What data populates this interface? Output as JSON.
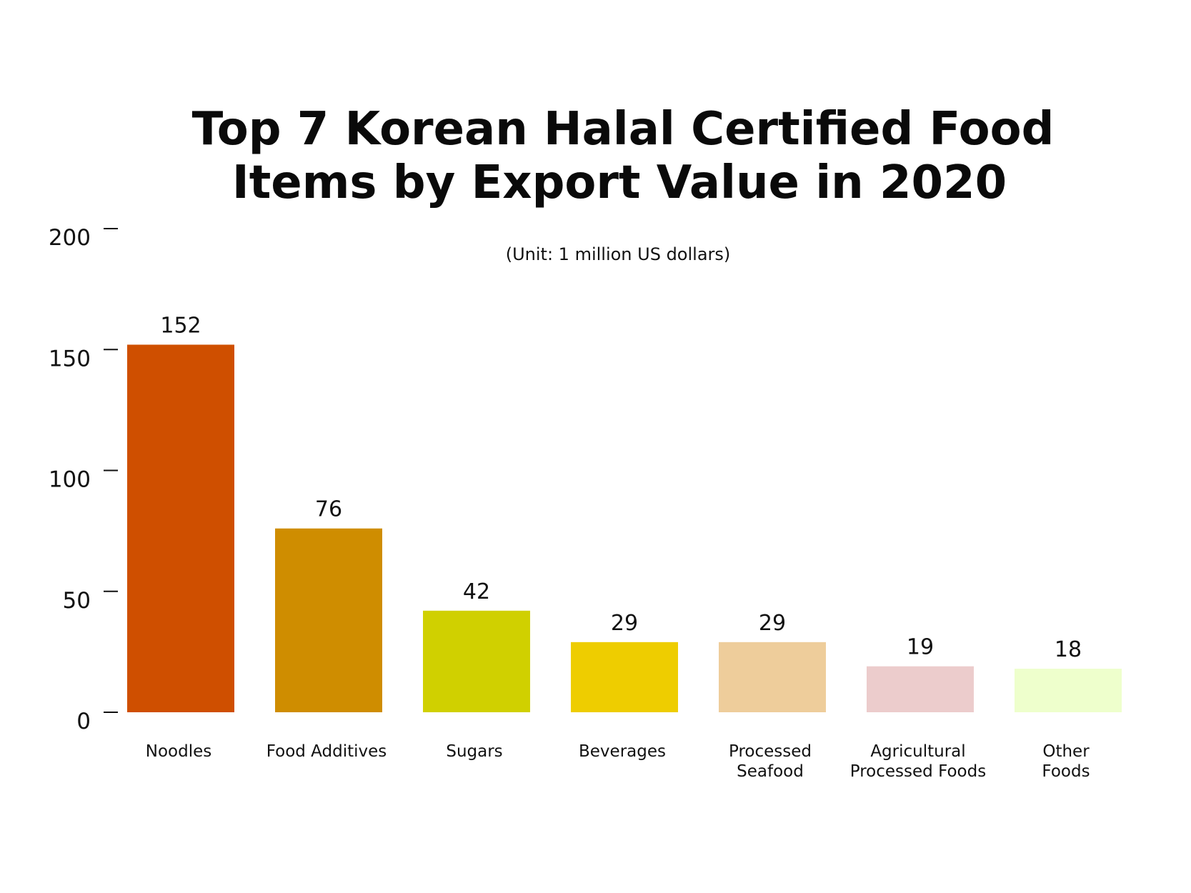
{
  "chart_data": {
    "type": "bar",
    "title": "Top 7 Korean Halal Certified Food Items by Export Value in 2020",
    "title_lines": [
      "Top 7 Korean Halal Certified Food",
      "Items by Export Value in 2020"
    ],
    "subtitle": "(Unit: 1 million US dollars)",
    "categories": [
      "Noodles",
      "Food Additives",
      "Sugars",
      "Beverages",
      "Processed Seafood",
      "Agricultural Processed Foods",
      "Other Foods"
    ],
    "category_lines": [
      [
        "Noodles"
      ],
      [
        "Food Additives"
      ],
      [
        "Sugars"
      ],
      [
        "Beverages"
      ],
      [
        "Processed",
        "Seafood"
      ],
      [
        "Agricultural",
        "Processed Foods"
      ],
      [
        "Other",
        "Foods"
      ]
    ],
    "values": [
      152,
      76,
      42,
      29,
      29,
      19,
      18
    ],
    "value_labels": [
      "152",
      "76",
      "42",
      "29",
      "29",
      "19",
      "18"
    ],
    "colors": [
      "#cf4f00",
      "#cf8d00",
      "#d0d000",
      "#eecd00",
      "#eecd9b",
      "#eccccc",
      "#eeffcc"
    ],
    "ylim": [
      0,
      200
    ],
    "y_ticks": [
      0,
      50,
      100,
      150,
      200
    ],
    "y_tick_labels": [
      "0",
      "50",
      "100",
      "150",
      "200"
    ],
    "xlabel": "",
    "ylabel": "",
    "grid": false,
    "legend": "none"
  }
}
